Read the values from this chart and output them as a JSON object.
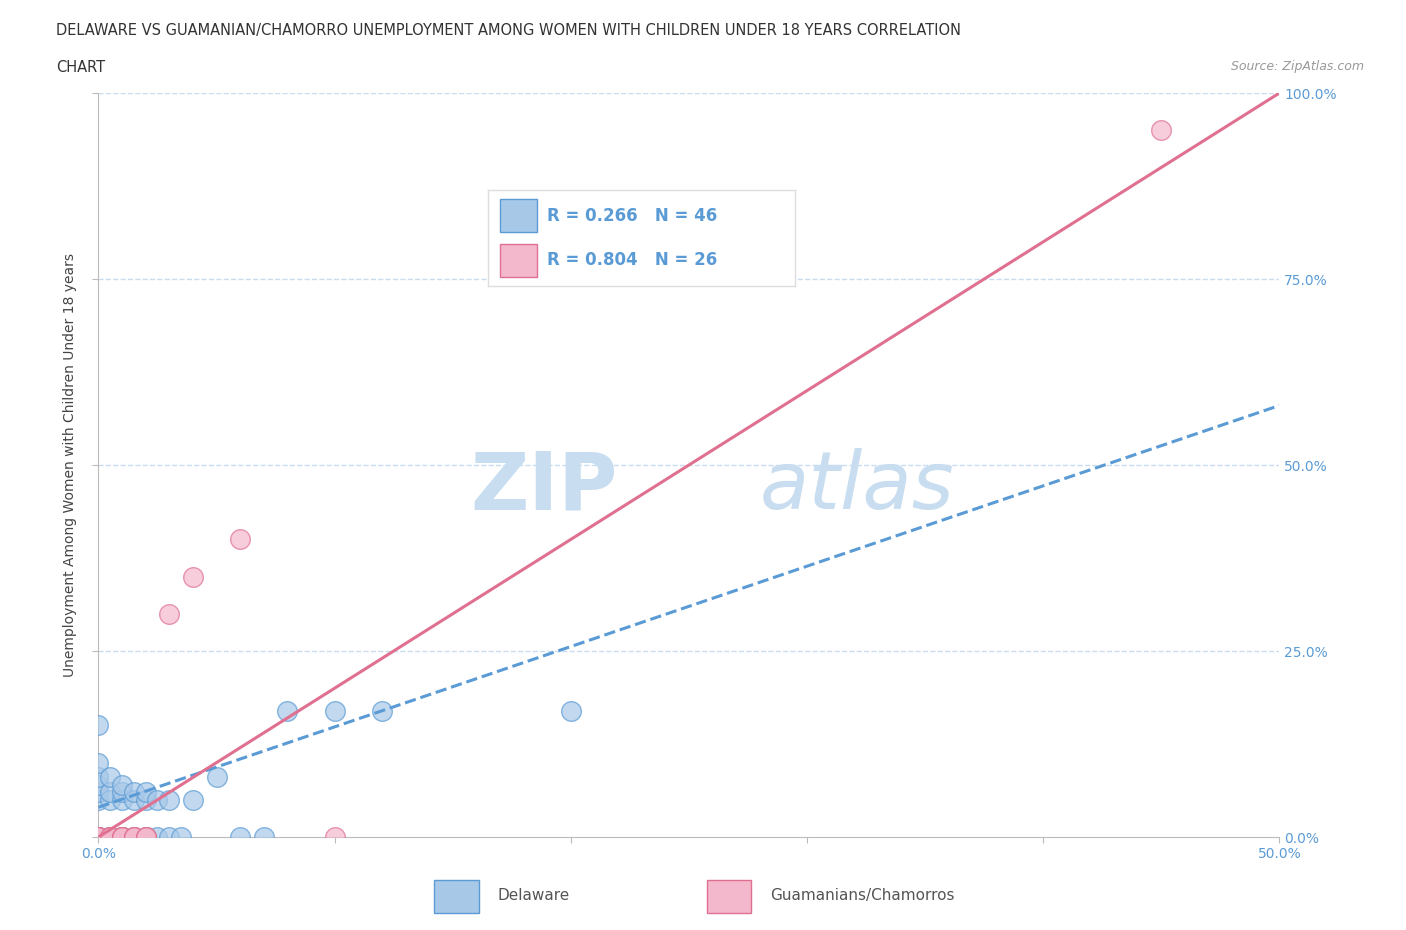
{
  "title_line1": "DELAWARE VS GUAMANIAN/CHAMORRO UNEMPLOYMENT AMONG WOMEN WITH CHILDREN UNDER 18 YEARS CORRELATION",
  "title_line2": "CHART",
  "source_text": "Source: ZipAtlas.com",
  "ylabel": "Unemployment Among Women with Children Under 18 years",
  "xlim": [
    0.0,
    0.5
  ],
  "ylim": [
    0.0,
    1.0
  ],
  "xticks": [
    0.0,
    0.1,
    0.2,
    0.3,
    0.4,
    0.5
  ],
  "yticks": [
    0.0,
    0.25,
    0.5,
    0.75,
    1.0
  ],
  "xticklabels": [
    "0.0%",
    "",
    "",
    "",
    "",
    "50.0%"
  ],
  "yticklabels": [
    "0.0%",
    "25.0%",
    "50.0%",
    "75.0%",
    "100.0%"
  ],
  "delaware_color": "#a8c8e8",
  "delaware_edge_color": "#5b9bd5",
  "chamorro_color": "#f4b8cc",
  "chamorro_edge_color": "#e07090",
  "delaware_R": 0.266,
  "delaware_N": 46,
  "chamorro_R": 0.804,
  "chamorro_N": 26,
  "trendline_delaware_color": "#5b9bd5",
  "trendline_chamorro_color": "#e07090",
  "legend_label_delaware": "Delaware",
  "legend_label_chamorro": "Guamanians/Chamorros",
  "watermark_zip": "ZIP",
  "watermark_atlas": "atlas",
  "watermark_color": "#c8ddf0",
  "background_color": "#ffffff",
  "grid_color": "#c8ddf0",
  "tick_color": "#5b9bd5",
  "delaware_x": [
    0.0,
    0.0,
    0.0,
    0.0,
    0.0,
    0.0,
    0.0,
    0.0,
    0.0,
    0.0,
    0.0,
    0.0,
    0.0,
    0.0,
    0.0,
    0.0,
    0.005,
    0.005,
    0.005,
    0.005,
    0.005,
    0.005,
    0.01,
    0.01,
    0.01,
    0.01,
    0.01,
    0.015,
    0.015,
    0.015,
    0.02,
    0.02,
    0.02,
    0.025,
    0.025,
    0.03,
    0.03,
    0.035,
    0.04,
    0.05,
    0.06,
    0.07,
    0.08,
    0.1,
    0.12,
    0.2
  ],
  "delaware_y": [
    0.0,
    0.0,
    0.0,
    0.0,
    0.0,
    0.0,
    0.0,
    0.0,
    0.0,
    0.0,
    0.05,
    0.06,
    0.07,
    0.08,
    0.1,
    0.15,
    0.0,
    0.0,
    0.0,
    0.05,
    0.06,
    0.08,
    0.0,
    0.0,
    0.05,
    0.06,
    0.07,
    0.0,
    0.05,
    0.06,
    0.0,
    0.05,
    0.06,
    0.0,
    0.05,
    0.0,
    0.05,
    0.0,
    0.05,
    0.08,
    0.0,
    0.0,
    0.17,
    0.17,
    0.17,
    0.17
  ],
  "chamorro_x": [
    0.0,
    0.0,
    0.0,
    0.0,
    0.0,
    0.0,
    0.0,
    0.0,
    0.005,
    0.005,
    0.005,
    0.01,
    0.01,
    0.01,
    0.01,
    0.015,
    0.015,
    0.015,
    0.02,
    0.02,
    0.02,
    0.03,
    0.04,
    0.06,
    0.1,
    0.45
  ],
  "chamorro_y": [
    0.0,
    0.0,
    0.0,
    0.0,
    0.0,
    0.0,
    0.0,
    0.0,
    0.0,
    0.0,
    0.0,
    0.0,
    0.0,
    0.0,
    0.0,
    0.0,
    0.0,
    0.0,
    0.0,
    0.0,
    0.0,
    0.3,
    0.35,
    0.4,
    0.0,
    0.95
  ],
  "chamorro_trendline_x0": 0.0,
  "chamorro_trendline_y0": 0.0,
  "chamorro_trendline_x1": 0.5,
  "chamorro_trendline_y1": 1.0,
  "delaware_trendline_x0": 0.0,
  "delaware_trendline_y0": 0.04,
  "delaware_trendline_x1": 0.5,
  "delaware_trendline_y1": 0.58
}
